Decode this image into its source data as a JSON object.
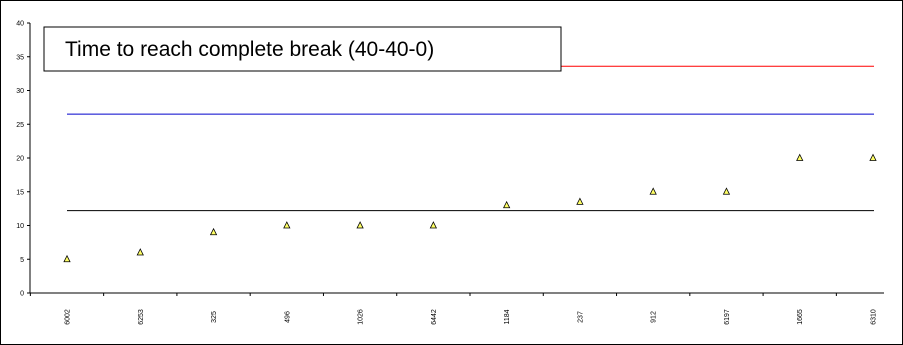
{
  "chart_data": {
    "type": "scatter",
    "title": "Time to reach complete break (40-40-0)",
    "categories": [
      "6002",
      "6253",
      "325",
      "496",
      "1026",
      "6442",
      "1184",
      "237",
      "912",
      "6197",
      "1665",
      "6310"
    ],
    "series": [
      {
        "values": [
          5,
          6,
          9,
          10,
          10,
          10,
          13,
          13.5,
          15,
          15,
          20,
          20
        ],
        "marker": "triangle",
        "color": "#ffff66"
      }
    ],
    "reference_lines": [
      {
        "value": 33.6,
        "color": "#ff0000"
      },
      {
        "value": 26.5,
        "color": "#0000cc"
      },
      {
        "value": 12.2,
        "color": "#000000"
      }
    ],
    "ylim": [
      0,
      40
    ],
    "yticks": [
      "0",
      "5",
      "10",
      "15",
      "20",
      "25",
      "30",
      "35",
      "40"
    ],
    "xlabel": "",
    "ylabel": "",
    "grid": false,
    "legend": "none"
  }
}
